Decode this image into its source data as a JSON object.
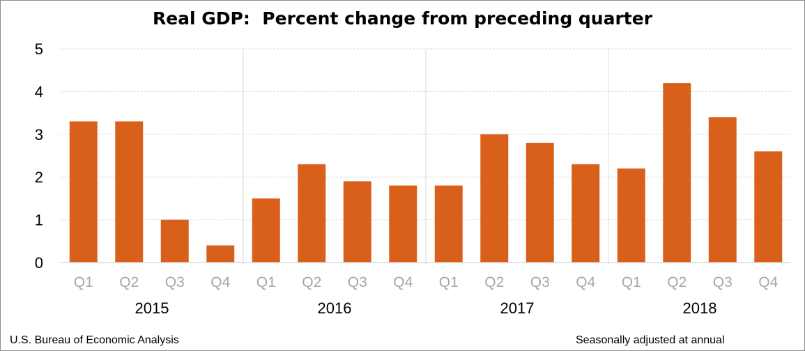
{
  "chart_data": {
    "type": "bar",
    "title": "Real GDP:  Percent change from preceding quarter",
    "xlabel": "",
    "ylabel": "",
    "ylim": [
      0,
      5
    ],
    "yticks": [
      0,
      1,
      2,
      3,
      4,
      5
    ],
    "grid": true,
    "legend": "none",
    "groups": [
      {
        "label": "2015",
        "categories": [
          "Q1",
          "Q2",
          "Q3",
          "Q4"
        ],
        "values": [
          3.3,
          3.3,
          1.0,
          0.4
        ]
      },
      {
        "label": "2016",
        "categories": [
          "Q1",
          "Q2",
          "Q3",
          "Q4"
        ],
        "values": [
          1.5,
          2.3,
          1.9,
          1.8
        ]
      },
      {
        "label": "2017",
        "categories": [
          "Q1",
          "Q2",
          "Q3",
          "Q4"
        ],
        "values": [
          1.8,
          3.0,
          2.8,
          2.3
        ]
      },
      {
        "label": "2018",
        "categories": [
          "Q1",
          "Q2",
          "Q3",
          "Q4"
        ],
        "values": [
          2.2,
          4.2,
          3.4,
          2.6
        ]
      }
    ],
    "bar_color": "#d9601a",
    "gridline_color": "#d9d9d9",
    "tick_label_color": "#a6a6a6"
  },
  "footer": {
    "source": "U.S. Bureau of Economic Analysis",
    "note": "Seasonally adjusted at annual"
  }
}
